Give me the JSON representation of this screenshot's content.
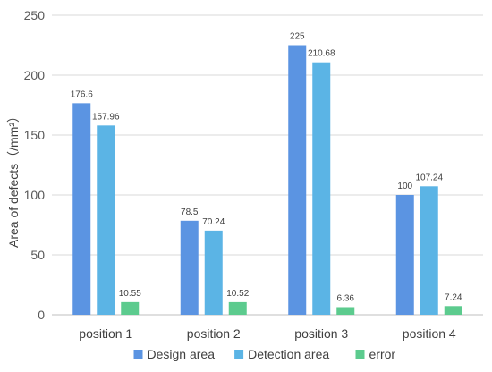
{
  "chart_data": {
    "type": "bar",
    "title": "",
    "xlabel": "",
    "ylabel": "Area of defects（/mm²）",
    "categories": [
      "position 1",
      "position 2",
      "position 3",
      "position 4"
    ],
    "series": [
      {
        "name": "Design area",
        "color": "#5B94E2",
        "values": [
          176.6,
          78.5,
          225,
          100
        ],
        "labels": [
          "176.6",
          "78.5",
          "225",
          "100"
        ]
      },
      {
        "name": "Detection area",
        "color": "#5BB4E5",
        "values": [
          157.96,
          70.24,
          210.68,
          107.24
        ],
        "labels": [
          "157.96",
          "70.24",
          "210.68",
          "107.24"
        ]
      },
      {
        "name": "error",
        "color": "#5CCB8E",
        "values": [
          10.55,
          10.52,
          6.36,
          7.24
        ],
        "labels": [
          "10.55",
          "10.52",
          "6.36",
          "7.24"
        ]
      }
    ],
    "ylim": [
      0,
      250
    ],
    "yticks": [
      "0",
      "50",
      "100",
      "150",
      "200",
      "250"
    ],
    "grid": true,
    "legend": "bottom"
  }
}
